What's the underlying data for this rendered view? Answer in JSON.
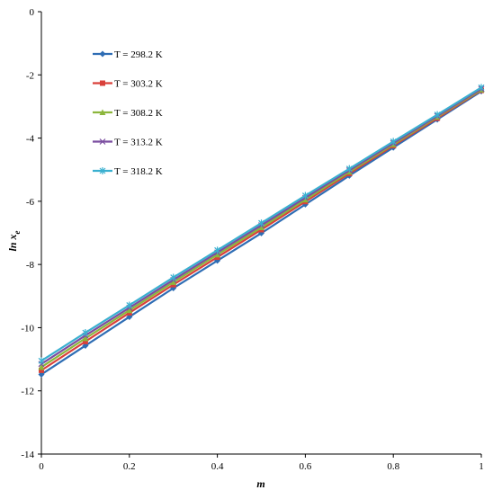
{
  "chart_data": {
    "type": "line",
    "title": "",
    "xlabel": "m",
    "ylabel": "ln x",
    "ylabel_subscript": "e",
    "xlim": [
      0,
      1
    ],
    "ylim": [
      -14,
      0
    ],
    "x_ticks": [
      "0",
      "0.2",
      "0.4",
      "0.6",
      "0.8",
      "1"
    ],
    "y_ticks": [
      "0",
      "-2",
      "-4",
      "-6",
      "-8",
      "-10",
      "-12",
      "-14"
    ],
    "grid": false,
    "legend_position": "top-left",
    "x": [
      0,
      0.1,
      0.2,
      0.3,
      0.4,
      0.5,
      0.6,
      0.7,
      0.8,
      0.9,
      1.0
    ],
    "series": [
      {
        "name": "T = 298.2 K",
        "color": "#2e6db4",
        "marker": "diamond",
        "values": [
          -11.48,
          -10.57,
          -9.66,
          -8.75,
          -7.88,
          -7.01,
          -6.1,
          -5.19,
          -4.3,
          -3.41,
          -2.52
        ]
      },
      {
        "name": "T = 303.2 K",
        "color": "#d9403a",
        "marker": "square",
        "values": [
          -11.35,
          -10.44,
          -9.53,
          -8.64,
          -7.77,
          -6.9,
          -6.01,
          -5.12,
          -4.24,
          -3.37,
          -2.49
        ]
      },
      {
        "name": "T = 308.2 K",
        "color": "#8cb63c",
        "marker": "triangle",
        "values": [
          -11.25,
          -10.34,
          -9.45,
          -8.56,
          -7.69,
          -6.83,
          -5.95,
          -5.07,
          -4.2,
          -3.33,
          -2.47
        ]
      },
      {
        "name": "T = 313.2 K",
        "color": "#7b4ea0",
        "marker": "x",
        "values": [
          -11.15,
          -10.25,
          -9.37,
          -8.49,
          -7.62,
          -6.76,
          -5.89,
          -5.02,
          -4.16,
          -3.3,
          -2.44
        ]
      },
      {
        "name": "T = 318.2 K",
        "color": "#3ab0d0",
        "marker": "star",
        "values": [
          -11.05,
          -10.16,
          -9.29,
          -8.41,
          -7.55,
          -6.69,
          -5.82,
          -4.97,
          -4.11,
          -3.26,
          -2.4
        ]
      }
    ]
  }
}
